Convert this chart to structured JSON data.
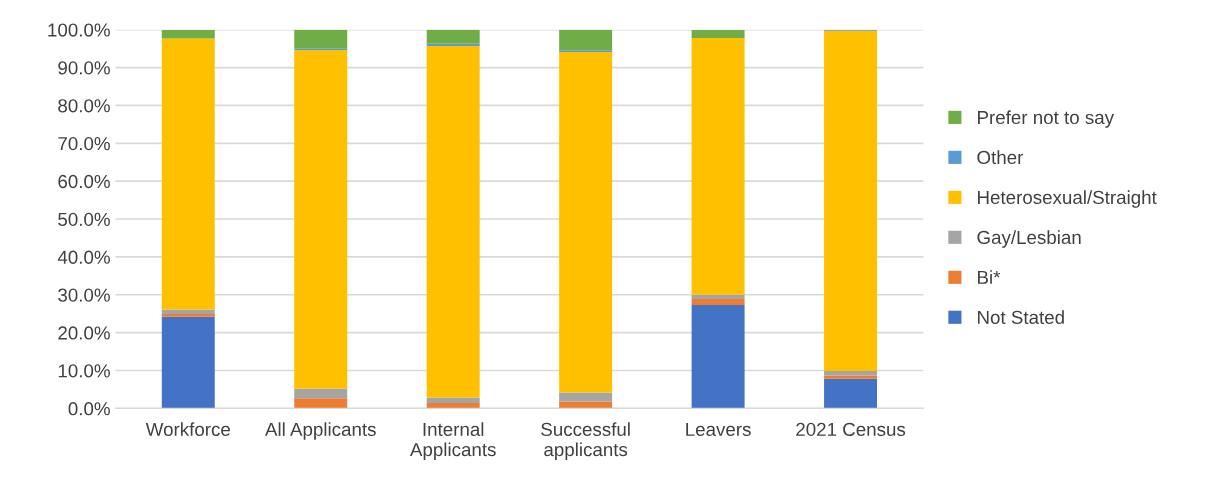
{
  "chart_data": {
    "type": "bar",
    "stacked": true,
    "categories": [
      "Workforce",
      "All Applicants",
      "Internal\nApplicants",
      "Successful\napplicants",
      "Leavers",
      "2021 Census"
    ],
    "series": [
      {
        "name": "Not Stated",
        "color": "#4472c4",
        "values": [
          24.2,
          0,
          0,
          0,
          27.3,
          7.8
        ]
      },
      {
        "name": "Bi*",
        "color": "#ed7d31",
        "values": [
          0.7,
          2.7,
          1.4,
          1.8,
          1.6,
          0.9
        ]
      },
      {
        "name": "Gay/Lesbian",
        "color": "#a5a5a5",
        "values": [
          1.2,
          2.5,
          1.5,
          2.4,
          1.1,
          1.2
        ]
      },
      {
        "name": "Heterosexual/Straight",
        "color": "#ffc000",
        "values": [
          71.6,
          89.4,
          92.8,
          89.9,
          67.8,
          89.8
        ]
      },
      {
        "name": "Other",
        "color": "#5b9bd5",
        "values": [
          null,
          0.4,
          0.6,
          0.5,
          null,
          0.3
        ]
      },
      {
        "name": "Prefer not to say",
        "color": "#70ad47",
        "values": [
          2.2,
          5.0,
          3.7,
          5.4,
          2.1,
          0
        ]
      }
    ],
    "ylim": [
      0,
      100
    ],
    "yticks": [
      {
        "value": 0,
        "label": "0.0%"
      },
      {
        "value": 10,
        "label": "10.0%"
      },
      {
        "value": 20,
        "label": "20.0%"
      },
      {
        "value": 30,
        "label": "30.0%"
      },
      {
        "value": 40,
        "label": "40.0%"
      },
      {
        "value": 50,
        "label": "50.0%"
      },
      {
        "value": 60,
        "label": "60.0%"
      },
      {
        "value": 70,
        "label": "70.0%"
      },
      {
        "value": 80,
        "label": "80.0%"
      },
      {
        "value": 90,
        "label": "90.0%"
      },
      {
        "value": 100,
        "label": "100.0%"
      }
    ],
    "grid": "y",
    "legend": "right"
  }
}
